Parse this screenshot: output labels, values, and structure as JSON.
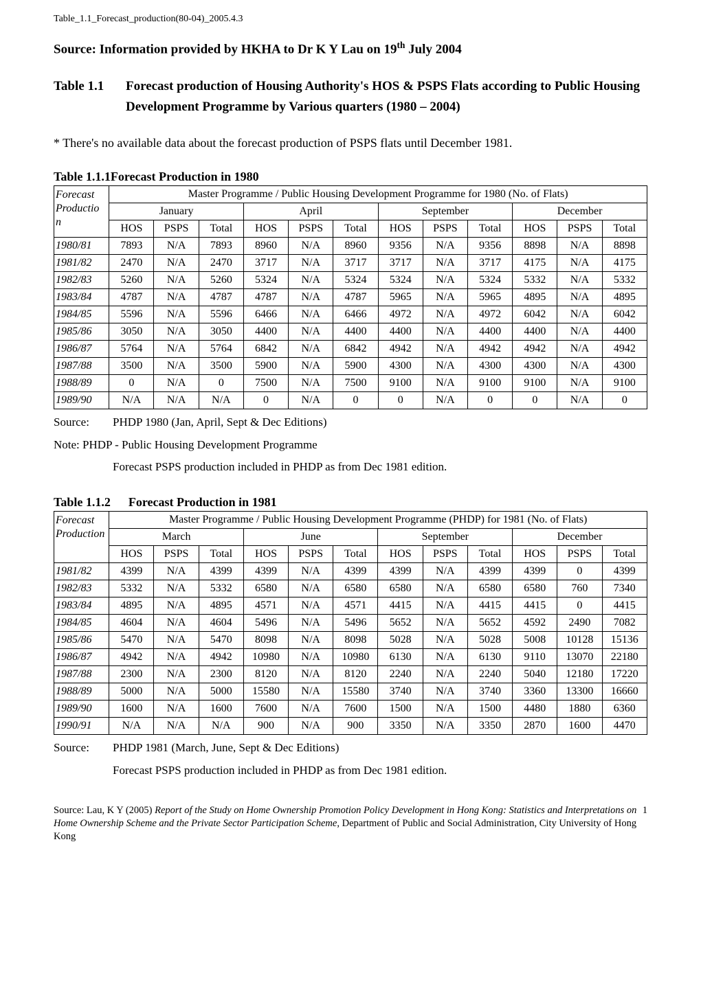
{
  "doc_header": "Table_1.1_Forecast_production(80-04)_2005.4.3",
  "source_line_pre": "Source: Information provided by HKHA to Dr K Y Lau on 19",
  "source_line_sup": "th",
  "source_line_post": " July 2004",
  "main_title_num": "Table 1.1",
  "main_title_txt": "Forecast production of Housing Authority's HOS & PSPS Flats according to Public Housing Development Programme by Various quarters (1980 – 2004)",
  "note_star": "* There's no available data about the forecast production of PSPS flats until December 1981.",
  "t1": {
    "title_a": "Table 1.1.1",
    "title_b": "Forecast Production in 1980",
    "header_program": "Master Programme /  Public Housing Development Programme for 1980 (No. of Flats)",
    "rowhead_label": "Forecast Production",
    "quarters": [
      "January",
      "April",
      "September",
      "December"
    ],
    "subcols": [
      "HOS",
      "PSPS",
      "Total"
    ],
    "years": [
      "1980/81",
      "1981/82",
      "1982/83",
      "1983/84",
      "1984/85",
      "1985/86",
      "1986/87",
      "1987/88",
      "1988/89",
      "1989/90"
    ],
    "rows": [
      [
        "7893",
        "N/A",
        "7893",
        "8960",
        "N/A",
        "8960",
        "9356",
        "N/A",
        "9356",
        "8898",
        "N/A",
        "8898"
      ],
      [
        "2470",
        "N/A",
        "2470",
        "3717",
        "N/A",
        "3717",
        "3717",
        "N/A",
        "3717",
        "4175",
        "N/A",
        "4175"
      ],
      [
        "5260",
        "N/A",
        "5260",
        "5324",
        "N/A",
        "5324",
        "5324",
        "N/A",
        "5324",
        "5332",
        "N/A",
        "5332"
      ],
      [
        "4787",
        "N/A",
        "4787",
        "4787",
        "N/A",
        "4787",
        "5965",
        "N/A",
        "5965",
        "4895",
        "N/A",
        "4895"
      ],
      [
        "5596",
        "N/A",
        "5596",
        "6466",
        "N/A",
        "6466",
        "4972",
        "N/A",
        "4972",
        "6042",
        "N/A",
        "6042"
      ],
      [
        "3050",
        "N/A",
        "3050",
        "4400",
        "N/A",
        "4400",
        "4400",
        "N/A",
        "4400",
        "4400",
        "N/A",
        "4400"
      ],
      [
        "5764",
        "N/A",
        "5764",
        "6842",
        "N/A",
        "6842",
        "4942",
        "N/A",
        "4942",
        "4942",
        "N/A",
        "4942"
      ],
      [
        "3500",
        "N/A",
        "3500",
        "5900",
        "N/A",
        "5900",
        "4300",
        "N/A",
        "4300",
        "4300",
        "N/A",
        "4300"
      ],
      [
        "0",
        "N/A",
        "0",
        "7500",
        "N/A",
        "7500",
        "9100",
        "N/A",
        "9100",
        "9100",
        "N/A",
        "9100"
      ],
      [
        "N/A",
        "N/A",
        "N/A",
        "0",
        "N/A",
        "0",
        "0",
        "N/A",
        "0",
        "0",
        "N/A",
        "0"
      ]
    ],
    "source_lbl": "Source:",
    "source_txt": "PHDP 1980 (Jan, April, Sept & Dec Editions)",
    "note_line": "Note: PHDP - Public Housing Development Programme",
    "extra_note": "Forecast PSPS production included in PHDP as from Dec 1981 edition."
  },
  "t2": {
    "title_a": "Table 1.1.2",
    "title_b": "Forecast Production in 1981",
    "header_program": "Master Programme /  Public Housing Development Programme (PHDP) for 1981 (No. of Flats)",
    "rowhead_label": "Forecast Production",
    "quarters": [
      "March",
      "June",
      "September",
      "December"
    ],
    "subcols": [
      "HOS",
      "PSPS",
      "Total"
    ],
    "years": [
      "1981/82",
      "1982/83",
      "1983/84",
      "1984/85",
      "1985/86",
      "1986/87",
      "1987/88",
      "1988/89",
      "1989/90",
      "1990/91"
    ],
    "rows": [
      [
        "4399",
        "N/A",
        "4399",
        "4399",
        "N/A",
        "4399",
        "4399",
        "N/A",
        "4399",
        "4399",
        "0",
        "4399"
      ],
      [
        "5332",
        "N/A",
        "5332",
        "6580",
        "N/A",
        "6580",
        "6580",
        "N/A",
        "6580",
        "6580",
        "760",
        "7340"
      ],
      [
        "4895",
        "N/A",
        "4895",
        "4571",
        "N/A",
        "4571",
        "4415",
        "N/A",
        "4415",
        "4415",
        "0",
        "4415"
      ],
      [
        "4604",
        "N/A",
        "4604",
        "5496",
        "N/A",
        "5496",
        "5652",
        "N/A",
        "5652",
        "4592",
        "2490",
        "7082"
      ],
      [
        "5470",
        "N/A",
        "5470",
        "8098",
        "N/A",
        "8098",
        "5028",
        "N/A",
        "5028",
        "5008",
        "10128",
        "15136"
      ],
      [
        "4942",
        "N/A",
        "4942",
        "10980",
        "N/A",
        "10980",
        "6130",
        "N/A",
        "6130",
        "9110",
        "13070",
        "22180"
      ],
      [
        "2300",
        "N/A",
        "2300",
        "8120",
        "N/A",
        "8120",
        "2240",
        "N/A",
        "2240",
        "5040",
        "12180",
        "17220"
      ],
      [
        "5000",
        "N/A",
        "5000",
        "15580",
        "N/A",
        "15580",
        "3740",
        "N/A",
        "3740",
        "3360",
        "13300",
        "16660"
      ],
      [
        "1600",
        "N/A",
        "1600",
        "7600",
        "N/A",
        "7600",
        "1500",
        "N/A",
        "1500",
        "4480",
        "1880",
        "6360"
      ],
      [
        "N/A",
        "N/A",
        "N/A",
        "900",
        "N/A",
        "900",
        "3350",
        "N/A",
        "3350",
        "2870",
        "1600",
        "4470"
      ]
    ],
    "source_lbl": "Source:",
    "source_txt": "PHDP 1981 (March, June, Sept & Dec Editions)",
    "extra_note": "Forecast PSPS production included in PHDP as from Dec 1981 edition."
  },
  "footer": {
    "line1_pre": "Source: Lau, K Y (2005) ",
    "line1_it": "Report of the Study on Home Ownership Promotion Policy Development in Hong Kong: Statistics and Interpretations on Home Ownership Scheme and the Private Sector Participation Scheme",
    "line1_post": ", Department of Public and Social Administration, City University of Hong Kong",
    "page_no": "1"
  }
}
